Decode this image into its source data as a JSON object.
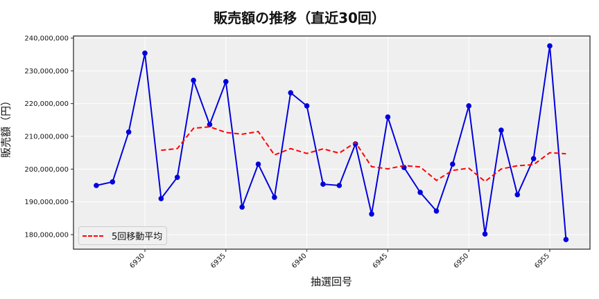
{
  "title": "販売額の推移（直近30回）",
  "xlabel": "抽選回号",
  "ylabel": "販売額（円）",
  "legend": {
    "label": "5回移動平均",
    "color": "#ff0000"
  },
  "colors": {
    "sales_line": "#0000dd",
    "ma_line": "#ff0000",
    "plot_bg": "#efefef",
    "grid": "#ffffff"
  },
  "chart_data": {
    "type": "line",
    "title": "販売額の推移（直近30回）",
    "xlabel": "抽選回号",
    "ylabel": "販売額（円）",
    "ylim": [
      175000000,
      240500000
    ],
    "xlim": [
      6924.5,
      6957.5
    ],
    "grid": true,
    "legend_position": "lower left",
    "x_ticks": [
      6930,
      6935,
      6940,
      6945,
      6950,
      6955
    ],
    "y_ticks": [
      180000000,
      190000000,
      200000000,
      210000000,
      220000000,
      230000000,
      240000000
    ],
    "y_tick_labels": [
      "180,000,000",
      "190,000,000",
      "200,000,000",
      "210,000,000",
      "220,000,000",
      "230,000,000",
      "240,000,000"
    ],
    "x": [
      6927,
      6928,
      6929,
      6930,
      6931,
      6932,
      6933,
      6934,
      6935,
      6936,
      6937,
      6938,
      6939,
      6940,
      6941,
      6942,
      6943,
      6944,
      6945,
      6946,
      6947,
      6948,
      6949,
      6950,
      6951,
      6952,
      6953,
      6954,
      6955,
      6956
    ],
    "series": [
      {
        "name": "販売額",
        "style": "solid line with circle markers",
        "color": "#0000dd",
        "in_legend": false,
        "values": [
          195000000,
          196100000,
          211300000,
          235400000,
          191000000,
          197500000,
          227100000,
          213600000,
          226700000,
          188400000,
          201500000,
          191400000,
          223300000,
          219300000,
          195400000,
          195000000,
          207700000,
          186300000,
          215900000,
          200500000,
          192900000,
          187200000,
          201500000,
          219300000,
          180200000,
          211900000,
          192200000,
          203200000,
          237600000,
          178500000
        ]
      },
      {
        "name": "5回移動平均",
        "style": "dashed",
        "color": "#ff0000",
        "in_legend": true,
        "values": [
          null,
          null,
          null,
          null,
          205760000,
          206260000,
          212460000,
          212920000,
          211180000,
          210660000,
          211460000,
          204320000,
          206260000,
          204780000,
          206180000,
          204880000,
          208140000,
          200740000,
          200060000,
          201080000,
          200660000,
          196560000,
          199600000,
          200280000,
          196220000,
          200020000,
          201020000,
          201360000,
          205020000,
          204680000
        ]
      }
    ]
  }
}
